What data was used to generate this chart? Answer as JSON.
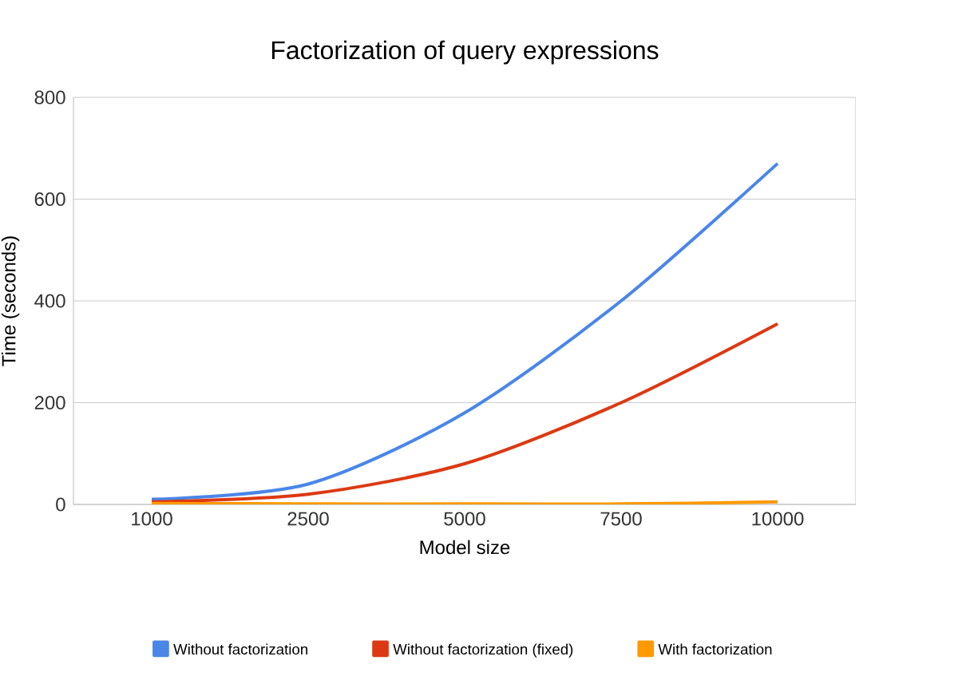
{
  "chart_data": {
    "type": "line",
    "title": "Factorization of query expressions",
    "xlabel": "Model size",
    "ylabel": "Time (seconds)",
    "categories": [
      "1000",
      "2500",
      "5000",
      "7500",
      "10000"
    ],
    "series": [
      {
        "name": "Without factorization",
        "color": "#4a86e8",
        "values": [
          10,
          40,
          180,
          400,
          670
        ]
      },
      {
        "name": "Without factorization (fixed)",
        "color": "#dc3912",
        "values": [
          5,
          20,
          80,
          200,
          355
        ]
      },
      {
        "name": "With factorization",
        "color": "#ff9900",
        "values": [
          2,
          1,
          1,
          1,
          5
        ]
      }
    ],
    "ylim": [
      0,
      800
    ],
    "yticks": [
      0,
      200,
      400,
      600,
      800
    ],
    "grid": "y",
    "legend": "bottom",
    "marker": "none",
    "line_style": "solid"
  }
}
